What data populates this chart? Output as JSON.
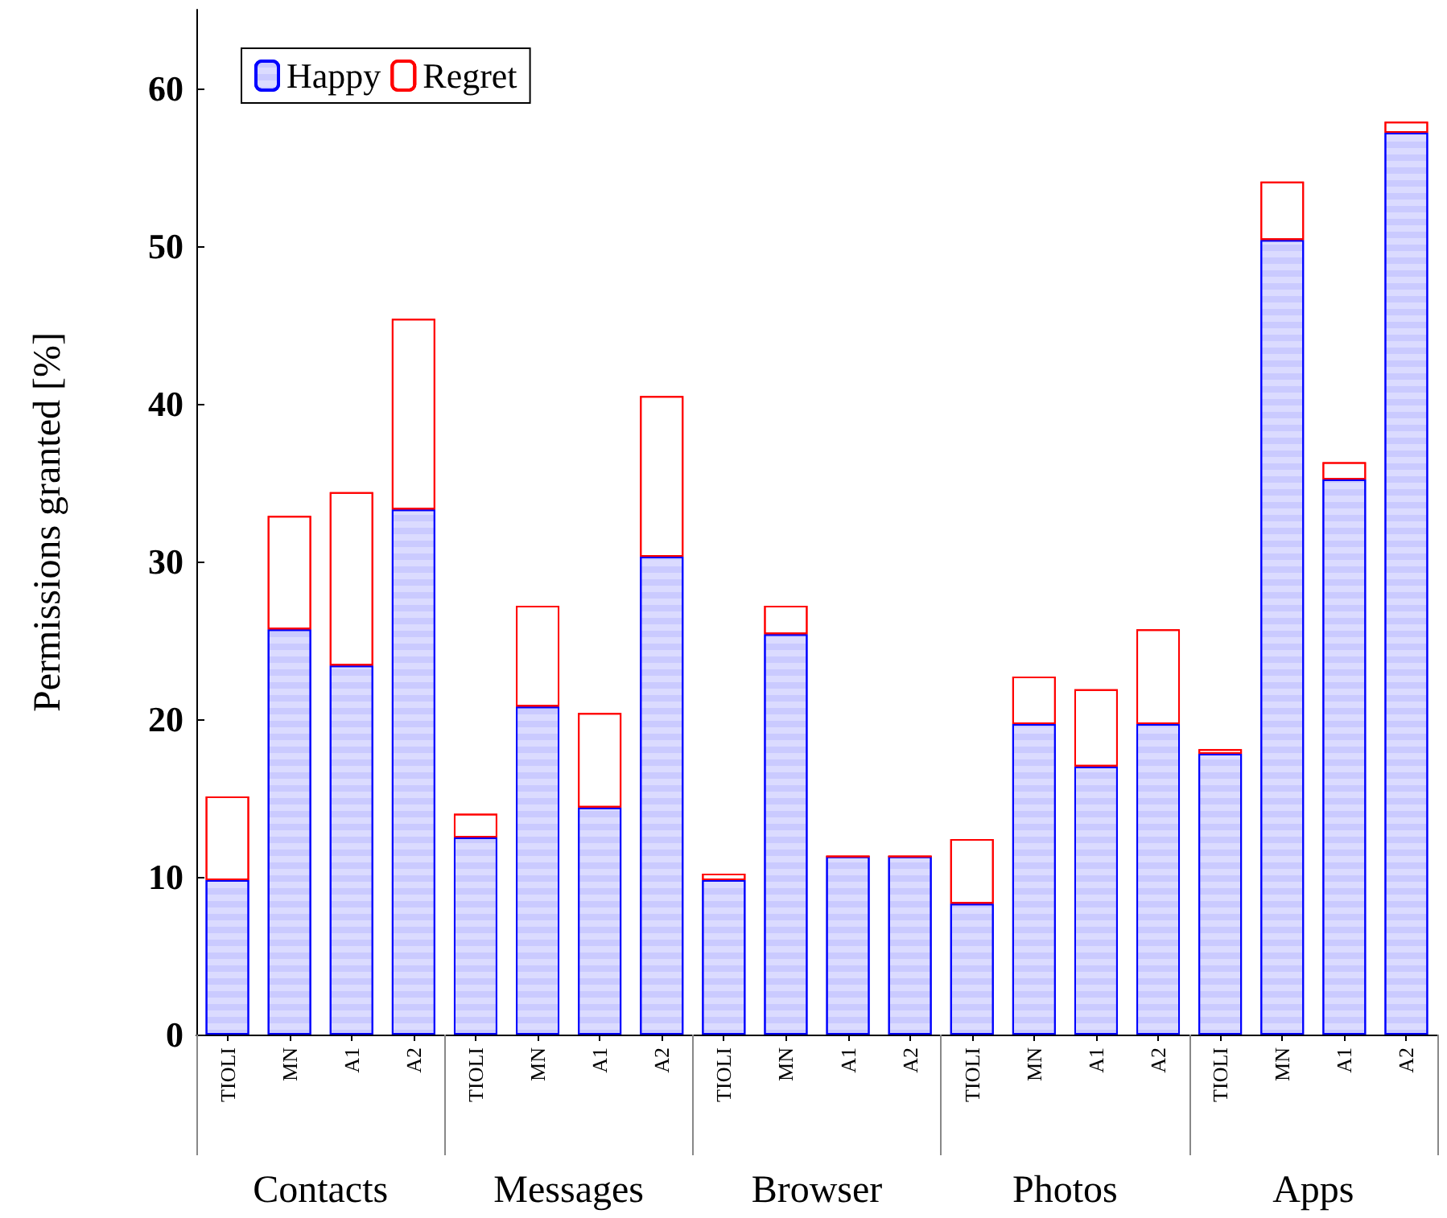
{
  "chart_data": {
    "type": "bar",
    "stacked": true,
    "ylabel": "Permissions granted [%]",
    "categories": [
      "TIOLI",
      "MN",
      "A1",
      "A2",
      "TIOLI",
      "MN",
      "A1",
      "A2",
      "TIOLI",
      "MN",
      "A1",
      "A2",
      "TIOLI",
      "MN",
      "A1",
      "A2",
      "TIOLI",
      "MN",
      "A1",
      "A2"
    ],
    "annotations": [
      "Contacts",
      "Messages",
      "Browser",
      "Photos",
      "Apps"
    ],
    "series": [
      {
        "name": "Happy",
        "color": "#0000ff",
        "values": [
          9.8,
          25.7,
          23.4,
          33.3,
          12.5,
          20.8,
          14.4,
          30.3,
          9.8,
          25.4,
          11.3,
          11.3,
          8.3,
          19.7,
          17.0,
          19.7,
          17.8,
          50.4,
          35.2,
          57.2
        ]
      },
      {
        "name": "Regret",
        "color": "#ff0000",
        "values": [
          5.3,
          7.2,
          11.0,
          12.1,
          1.5,
          6.4,
          6.0,
          10.2,
          0.4,
          1.8,
          0,
          0,
          4.1,
          3.0,
          4.9,
          6.0,
          0.3,
          3.7,
          1.1,
          0.7
        ]
      }
    ],
    "ylim": [
      0,
      65
    ],
    "yticks": [
      0,
      10,
      20,
      30,
      40,
      50,
      60
    ],
    "grid": false,
    "legend": "top left"
  }
}
